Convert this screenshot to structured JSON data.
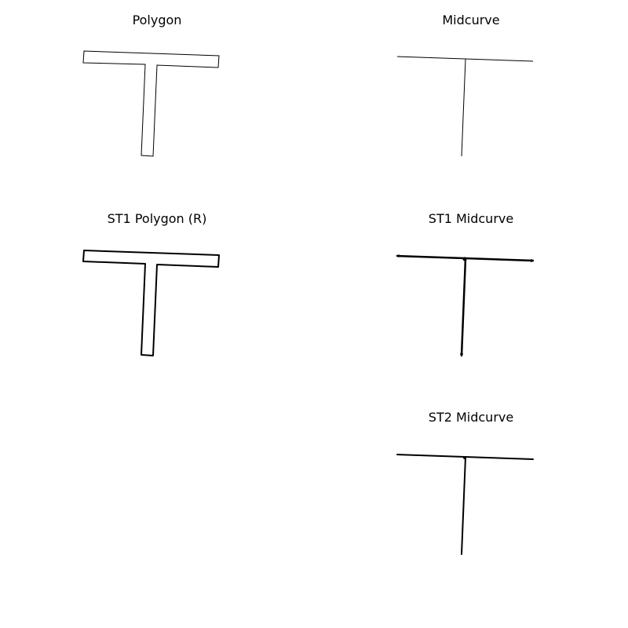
{
  "panels": [
    {
      "title": "Polygon",
      "kind": "polygon"
    },
    {
      "title": "Midcurve",
      "kind": "midcurve"
    },
    {
      "title": "ST1 Polygon (R)",
      "kind": "polygon-rendered"
    },
    {
      "title": "ST1 Midcurve",
      "kind": "midcurve-rendered"
    },
    {
      "title": "ST2 Midcurve",
      "kind": "midcurve-rendered"
    }
  ],
  "colors": {
    "background": "#ffffff",
    "stroke": "#000000"
  }
}
